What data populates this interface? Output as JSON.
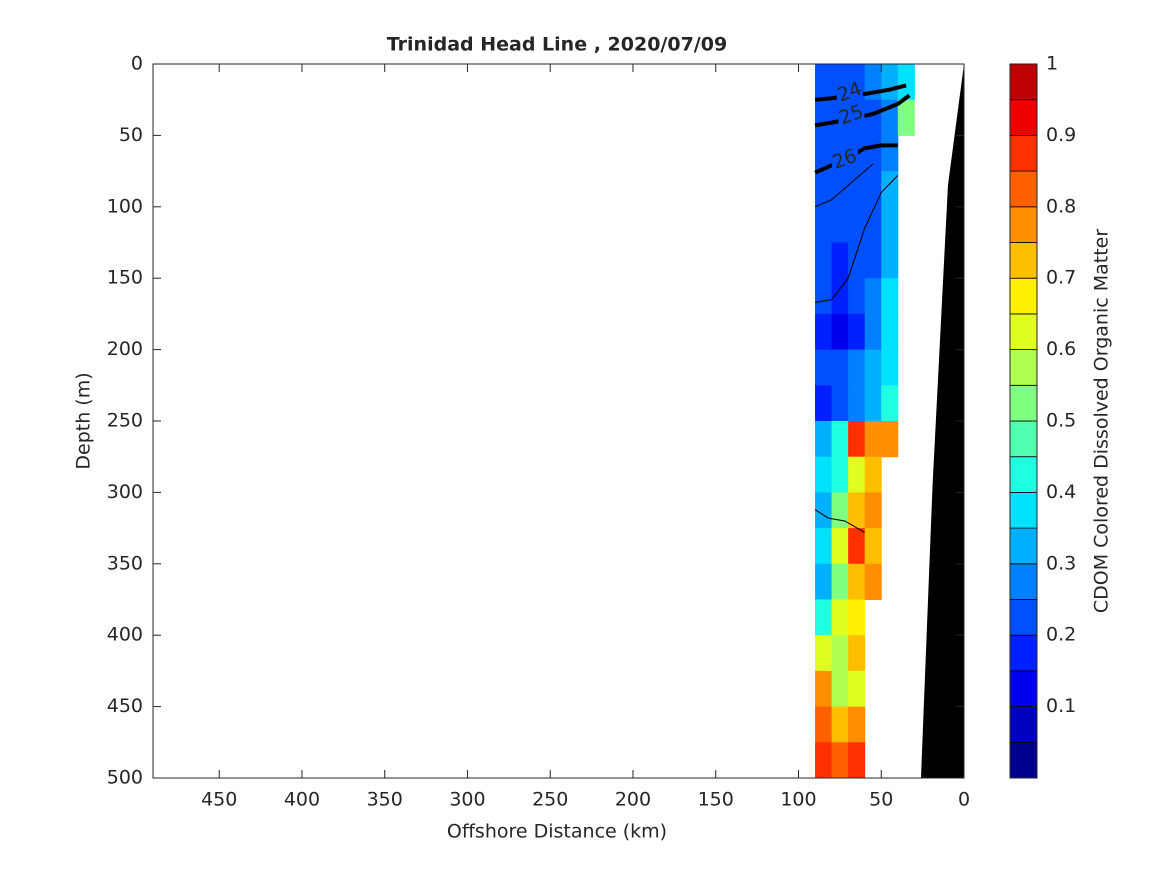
{
  "chart_data": {
    "type": "contour",
    "title": "Trinidad Head Line , 2020/07/09",
    "xlabel": "Offshore Distance (km)",
    "ylabel": "Depth (m)",
    "xlim": [
      490,
      0
    ],
    "ylim": [
      0,
      500
    ],
    "xticks": [
      450,
      400,
      350,
      300,
      250,
      200,
      150,
      100,
      50,
      0
    ],
    "yticks": [
      0,
      50,
      100,
      150,
      200,
      250,
      300,
      350,
      400,
      450,
      500
    ],
    "colorbar": {
      "label": "CDOM Colored Dissolved Organic Matter",
      "clim": [
        0,
        1
      ],
      "ticks": [
        0.1,
        0.2,
        0.3,
        0.4,
        0.5,
        0.6,
        0.7,
        0.8,
        0.9,
        1
      ],
      "colormap": [
        "#00008f",
        "#0000bf",
        "#0000ef",
        "#0020ff",
        "#0050ff",
        "#0080ff",
        "#00b0ff",
        "#00e0ff",
        "#20ffdf",
        "#50ffaf",
        "#80ff80",
        "#b0ff50",
        "#e0ff20",
        "#ffef00",
        "#ffbf00",
        "#ff8f00",
        "#ff6000",
        "#ff3000",
        "#ef0000",
        "#bf0000"
      ]
    },
    "field": {
      "x_edges": [
        90,
        80,
        70,
        60,
        50,
        40,
        30
      ],
      "y_edges": [
        0,
        25,
        50,
        75,
        100,
        125,
        150,
        175,
        200,
        225,
        250,
        275,
        300,
        325,
        350,
        375,
        400,
        425,
        450,
        475,
        500
      ],
      "values": [
        [
          0.2,
          0.2,
          0.2,
          0.25,
          0.3,
          0.35
        ],
        [
          0.2,
          0.2,
          0.2,
          0.2,
          0.25,
          0.5
        ],
        [
          0.2,
          0.2,
          0.2,
          0.2,
          0.25,
          null
        ],
        [
          0.2,
          0.2,
          0.2,
          0.2,
          0.3,
          null
        ],
        [
          0.2,
          0.2,
          0.2,
          0.2,
          0.3,
          null
        ],
        [
          0.2,
          0.15,
          0.2,
          0.2,
          0.3,
          null
        ],
        [
          0.2,
          0.15,
          0.2,
          0.25,
          0.35,
          null
        ],
        [
          0.15,
          0.1,
          0.15,
          0.25,
          0.35,
          null
        ],
        [
          0.2,
          0.2,
          0.25,
          0.3,
          0.35,
          null
        ],
        [
          0.15,
          0.2,
          0.25,
          0.3,
          0.4,
          null
        ],
        [
          0.3,
          0.4,
          0.85,
          0.75,
          0.75,
          null
        ],
        [
          0.35,
          0.4,
          0.6,
          0.7,
          null,
          null
        ],
        [
          0.3,
          0.5,
          0.7,
          0.75,
          null,
          null
        ],
        [
          0.35,
          0.6,
          0.85,
          0.7,
          null,
          null
        ],
        [
          0.3,
          0.5,
          0.7,
          0.75,
          null,
          null
        ],
        [
          0.4,
          0.6,
          0.65,
          null,
          null,
          null
        ],
        [
          0.6,
          0.55,
          0.7,
          null,
          null,
          null
        ],
        [
          0.75,
          0.55,
          0.6,
          null,
          null,
          null
        ],
        [
          0.8,
          0.7,
          0.75,
          null,
          null,
          null
        ],
        [
          0.85,
          0.8,
          0.85,
          null,
          null,
          null
        ]
      ]
    },
    "bottom": {
      "color": "#000000",
      "x": [
        0,
        9.7,
        19,
        26,
        0
      ],
      "y": [
        0,
        85,
        295,
        500,
        500
      ]
    },
    "contours": [
      {
        "label": "24",
        "x": [
          90,
          80,
          60,
          45,
          35
        ],
        "y": [
          25,
          24,
          21,
          18,
          15
        ],
        "label_x": 69,
        "label_y": 20
      },
      {
        "label": "25",
        "x": [
          90,
          75,
          55,
          40,
          33
        ],
        "y": [
          43,
          40,
          35,
          28,
          22
        ],
        "label_x": 68,
        "label_y": 36
      },
      {
        "label": "26",
        "x": [
          90,
          72,
          60,
          50,
          40
        ],
        "y": [
          76,
          67,
          59,
          57,
          57
        ],
        "label_x": 72,
        "label_y": 67
      }
    ],
    "thin_contours": [
      {
        "x": [
          90,
          80,
          65,
          55
        ],
        "y": [
          100,
          95,
          80,
          70
        ]
      },
      {
        "x": [
          90,
          80,
          70,
          60,
          50,
          40
        ],
        "y": [
          167,
          165,
          150,
          115,
          90,
          78
        ]
      },
      {
        "x": [
          90,
          82,
          72,
          60
        ],
        "y": [
          312,
          318,
          320,
          328
        ]
      }
    ]
  }
}
